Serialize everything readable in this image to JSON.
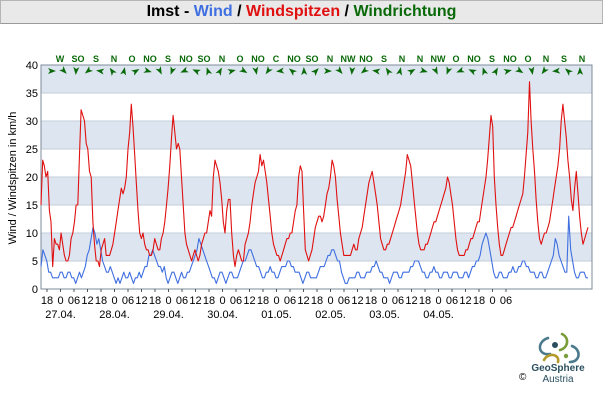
{
  "title": {
    "part1": "Imst - ",
    "wind": "Wind",
    "sep1": " / ",
    "gusts": "Windspitzen",
    "sep2": " / ",
    "direction": "Windrichtung"
  },
  "colors": {
    "wind": "#3f6fe0",
    "gusts": "#e01010",
    "direction": "#0a6a0a",
    "band": "#dde6f0"
  },
  "footer": {
    "logo_name": "GeoSphere",
    "logo_sub": "Austria",
    "copyright": "©"
  },
  "chart_data": {
    "type": "line",
    "ylabel": "Wind / Windspitzen in km/h",
    "ylim": [
      0,
      40
    ],
    "yticks": [
      "0",
      "5",
      "10",
      "15",
      "20",
      "25",
      "30",
      "35",
      "40"
    ],
    "x_hour_labels": [
      "18",
      "0",
      "06",
      "12",
      "18",
      "0",
      "06",
      "12",
      "18",
      "0",
      "06",
      "12",
      "18",
      "0",
      "06",
      "12",
      "18",
      "0",
      "06",
      "12",
      "18",
      "0",
      "06",
      "12",
      "18",
      "0",
      "06",
      "12",
      "18",
      "0",
      "06",
      "12",
      "18",
      "0",
      "06"
    ],
    "x_date_labels": [
      "27.04.",
      "28.04.",
      "29.04.",
      "30.04.",
      "01.05.",
      "02.05.",
      "03.05.",
      "04.05."
    ],
    "x_hours_start": 18,
    "x_step_hours": 1,
    "direction_labels": [
      "W",
      "SO",
      "S",
      "N",
      "O",
      "NO",
      "S",
      "NO",
      "SO",
      "N",
      "O",
      "NO",
      "C",
      "NO",
      "SO",
      "N",
      "NW",
      "NO",
      "S",
      "N",
      "N",
      "NW",
      "O",
      "NO",
      "S",
      "NO",
      "O",
      "N",
      "S",
      "N"
    ],
    "series": [
      {
        "name": "Wind",
        "values": [
          4,
          7,
          6,
          5,
          3,
          3,
          2,
          2,
          2,
          2,
          3,
          3,
          2,
          2,
          3,
          3,
          2,
          2,
          1,
          2,
          3,
          2,
          3,
          4,
          6,
          7,
          9,
          11,
          10,
          8,
          9,
          7,
          5,
          4,
          3,
          3,
          4,
          3,
          2,
          1,
          2,
          1,
          2,
          3,
          2,
          2,
          3,
          2,
          1,
          2,
          2,
          3,
          2,
          3,
          4,
          4,
          6,
          6,
          7,
          6,
          5,
          4,
          4,
          3,
          4,
          2,
          1,
          2,
          3,
          3,
          2,
          1,
          2,
          3,
          2,
          2,
          3,
          3,
          4,
          5,
          6,
          7,
          9,
          8,
          7,
          6,
          5,
          4,
          3,
          2,
          2,
          1,
          2,
          3,
          3,
          2,
          1,
          2,
          3,
          3,
          2,
          2,
          2,
          3,
          4,
          5,
          5,
          6,
          7,
          7,
          6,
          5,
          4,
          4,
          3,
          2,
          2,
          3,
          3,
          4,
          3,
          3,
          2,
          2,
          3,
          4,
          4,
          4,
          5,
          5,
          4,
          4,
          3,
          3,
          3,
          2,
          1,
          2,
          3,
          3,
          2,
          2,
          2,
          2,
          3,
          4,
          4,
          4,
          5,
          6,
          6,
          7,
          7,
          6,
          5,
          5,
          3,
          2,
          1,
          1,
          2,
          2,
          2,
          2,
          3,
          3,
          2,
          2,
          2,
          3,
          3,
          3,
          4,
          4,
          5,
          4,
          3,
          3,
          2,
          2,
          2,
          1,
          2,
          3,
          3,
          3,
          2,
          2,
          3,
          3,
          3,
          3,
          4,
          4,
          5,
          5,
          5,
          4,
          3,
          3,
          2,
          2,
          3,
          3,
          4,
          3,
          3,
          2,
          2,
          3,
          3,
          3,
          2,
          2,
          3,
          3,
          3,
          2,
          2,
          2,
          3,
          3,
          2,
          3,
          4,
          4,
          5,
          5,
          6,
          8,
          9,
          10,
          9,
          7,
          5,
          3,
          2,
          2,
          3,
          3,
          2,
          2,
          2,
          3,
          3,
          4,
          3,
          3,
          4,
          4,
          5,
          5,
          4,
          4,
          3,
          3,
          3,
          2,
          2,
          3,
          3,
          2,
          2,
          3,
          4,
          5,
          6,
          9,
          8,
          6,
          5,
          4,
          3,
          3,
          13,
          7,
          5,
          3,
          2,
          2,
          3,
          3,
          3,
          2,
          2
        ]
      },
      {
        "name": "Windspitzen",
        "values": [
          15,
          23,
          22,
          20,
          21,
          14,
          12,
          4,
          9,
          8,
          8,
          7,
          10,
          8,
          6,
          5,
          5,
          6,
          9,
          10,
          12,
          15,
          15,
          24,
          32,
          31,
          30,
          26,
          25,
          21,
          20,
          12,
          8,
          5,
          5,
          4,
          7,
          8,
          9,
          6,
          6,
          6,
          7,
          8,
          10,
          12,
          14,
          16,
          18,
          17,
          18,
          20,
          25,
          28,
          33,
          29,
          24,
          19,
          14,
          10,
          9,
          10,
          8,
          7,
          7,
          6,
          6,
          7,
          9,
          8,
          7,
          7,
          9,
          10,
          12,
          15,
          18,
          22,
          27,
          31,
          28,
          25,
          26,
          25,
          20,
          15,
          10,
          8,
          7,
          6,
          5,
          6,
          7,
          6,
          5,
          6,
          8,
          9,
          10,
          10,
          12,
          14,
          13,
          20,
          23,
          22,
          21,
          19,
          16,
          12,
          10,
          14,
          16,
          16,
          10,
          6,
          4,
          6,
          7,
          6,
          5,
          5,
          8,
          9,
          10,
          12,
          15,
          17,
          19,
          20,
          21,
          24,
          22,
          23,
          21,
          19,
          16,
          13,
          10,
          8,
          7,
          6,
          6,
          5,
          6,
          7,
          8,
          9,
          9,
          10,
          10,
          12,
          14,
          15,
          20,
          22,
          21,
          14,
          7,
          6,
          5,
          6,
          7,
          9,
          11,
          12,
          13,
          13,
          12,
          13,
          15,
          17,
          18,
          20,
          23,
          22,
          20,
          16,
          13,
          10,
          8,
          6,
          6,
          6,
          6,
          6,
          7,
          8,
          7,
          7,
          9,
          10,
          11,
          13,
          15,
          17,
          19,
          20,
          21,
          19,
          17,
          15,
          12,
          9,
          8,
          7,
          7,
          8,
          8,
          9,
          10,
          11,
          12,
          13,
          14,
          15,
          17,
          19,
          21,
          24,
          23,
          22,
          19,
          16,
          13,
          10,
          8,
          7,
          7,
          7,
          8,
          8,
          9,
          10,
          11,
          12,
          12,
          13,
          14,
          15,
          16,
          17,
          18,
          20,
          19,
          17,
          15,
          12,
          9,
          7,
          6,
          6,
          6,
          6,
          7,
          7,
          8,
          9,
          9,
          10,
          11,
          12,
          12,
          14,
          16,
          18,
          20,
          23,
          27,
          31,
          29,
          20,
          15,
          11,
          8,
          6,
          6,
          7,
          8,
          9,
          10,
          11,
          11,
          12,
          13,
          14,
          15,
          16,
          17,
          20,
          24,
          28,
          37,
          30,
          25,
          21,
          16,
          12,
          9,
          8,
          9,
          10,
          10,
          11,
          12,
          14,
          16,
          18,
          20,
          22,
          25,
          30,
          33,
          30,
          27,
          23,
          20,
          16,
          14,
          18,
          21,
          17,
          13,
          10,
          8,
          9,
          10,
          11
        ]
      }
    ]
  }
}
